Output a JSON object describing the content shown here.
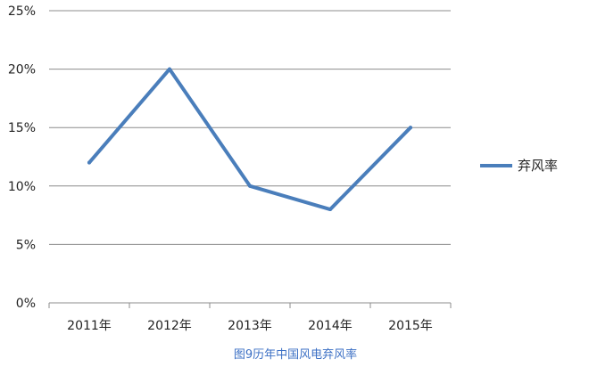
{
  "chart_data": {
    "type": "line",
    "categories": [
      "2011年",
      "2012年",
      "2013年",
      "2014年",
      "2015年"
    ],
    "series": [
      {
        "name": "弃风率",
        "values": [
          12,
          20,
          10,
          8,
          15
        ]
      }
    ],
    "ylim": [
      0,
      25
    ],
    "yticks": [
      "0%",
      "5%",
      "10%",
      "15%",
      "20%",
      "25%"
    ],
    "ytick_values": [
      0,
      5,
      10,
      15,
      20,
      25
    ],
    "grid": true,
    "legend_position": "right",
    "line_color": "#4A7EBB",
    "grid_color": "#8C8C8C"
  },
  "caption": {
    "text": "图9历年中国风电弃风率",
    "color": "#3B6FC4"
  }
}
